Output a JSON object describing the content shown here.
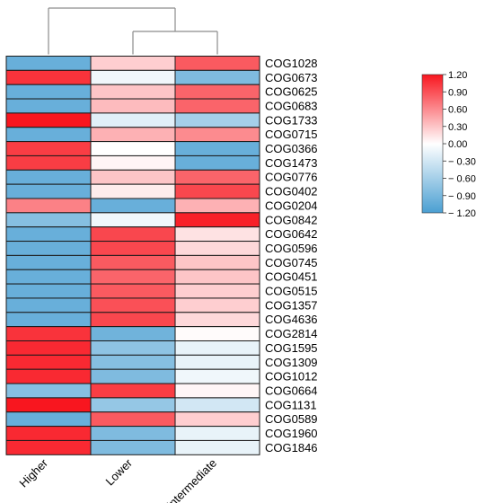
{
  "chart_data": {
    "type": "heatmap",
    "columns": [
      "Higher",
      "Lower",
      "Intermediate"
    ],
    "rows": [
      "COG1028",
      "COG0673",
      "COG0625",
      "COG0683",
      "COG1733",
      "COG0715",
      "COG0366",
      "COG1473",
      "COG0776",
      "COG0402",
      "COG0204",
      "COG0842",
      "COG0642",
      "COG0596",
      "COG0745",
      "COG0451",
      "COG0515",
      "COG1357",
      "COG4636",
      "COG2814",
      "COG1595",
      "COG1309",
      "COG1012",
      "COG0664",
      "COG1131",
      "COG0589",
      "COG1960",
      "COG1846"
    ],
    "values": [
      [
        -1.0,
        0.25,
        0.85
      ],
      [
        1.05,
        -0.1,
        -0.85
      ],
      [
        -1.0,
        0.3,
        0.8
      ],
      [
        -1.0,
        0.35,
        0.8
      ],
      [
        1.2,
        -0.2,
        -0.6
      ],
      [
        -1.0,
        0.4,
        0.6
      ],
      [
        1.0,
        0.0,
        -1.0
      ],
      [
        1.0,
        0.05,
        -1.0
      ],
      [
        -1.0,
        0.3,
        0.8
      ],
      [
        -1.0,
        0.1,
        0.95
      ],
      [
        0.65,
        -1.0,
        0.4
      ],
      [
        -0.8,
        -0.1,
        1.15
      ],
      [
        -1.0,
        0.95,
        0.15
      ],
      [
        -1.0,
        0.95,
        0.2
      ],
      [
        -1.0,
        0.85,
        0.3
      ],
      [
        -1.0,
        0.8,
        0.3
      ],
      [
        -1.0,
        0.85,
        0.25
      ],
      [
        -1.0,
        0.9,
        0.25
      ],
      [
        -1.0,
        0.95,
        0.2
      ],
      [
        1.05,
        -0.95,
        0.02
      ],
      [
        1.1,
        -0.75,
        -0.15
      ],
      [
        1.1,
        -0.8,
        -0.15
      ],
      [
        1.1,
        -0.85,
        -0.1
      ],
      [
        -0.8,
        1.0,
        0.05
      ],
      [
        1.2,
        -0.7,
        -0.3
      ],
      [
        -1.0,
        0.85,
        0.25
      ],
      [
        1.1,
        -0.85,
        -0.15
      ],
      [
        1.1,
        -0.85,
        -0.15
      ]
    ],
    "colorbar": {
      "ticks": [
        "1.20",
        "0.90",
        "0.60",
        "0.30",
        "0.00",
        "− 0.30",
        "− 0.60",
        "− 0.90",
        "− 1.20"
      ],
      "min": -1.2,
      "max": 1.2,
      "colors": {
        "low": "#4a9fd2",
        "mid": "#ffffff",
        "high": "#f8161f"
      }
    },
    "dendrogram": "column dendrogram on top: Lower and Intermediate merge first, then join Higher",
    "xlabel": "",
    "ylabel": "",
    "title": ""
  }
}
